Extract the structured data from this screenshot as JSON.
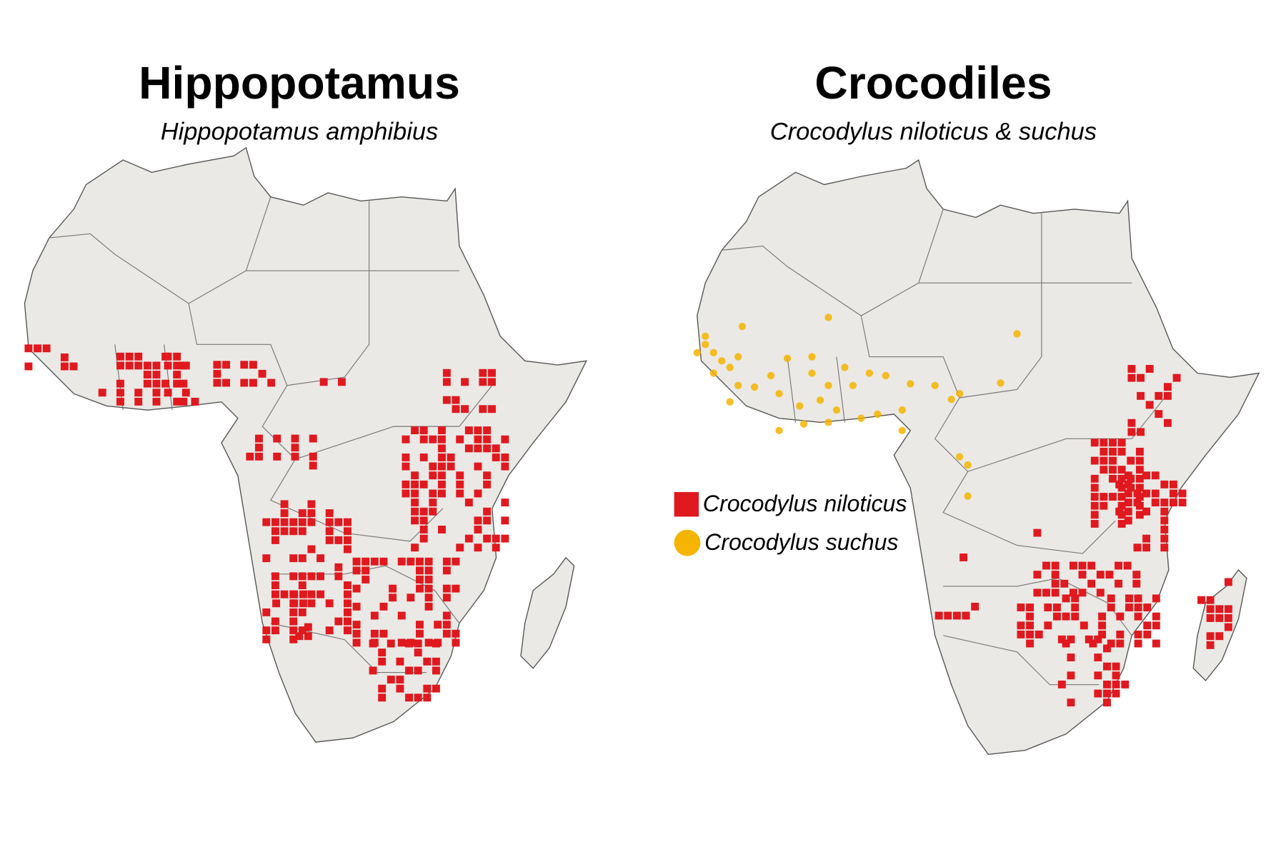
{
  "maps": [
    {
      "title": "Hippopotamus",
      "subtitle": "Hippopotamus amphibius"
    },
    {
      "title": "Crocodiles",
      "subtitle": "Crocodylus niloticus & suchus"
    }
  ],
  "legend": [
    {
      "label": "Crocodylus niloticus",
      "color": "#e0191f"
    },
    {
      "label": "Crocodylus suchus",
      "color": "#f5b400"
    }
  ]
}
